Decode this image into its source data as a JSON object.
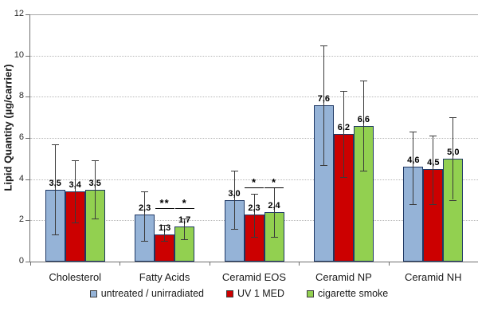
{
  "chart_data": {
    "type": "bar",
    "title": "",
    "xlabel": "",
    "ylabel": "Lipid Quantity (µg/carrier)",
    "ylim": [
      0,
      12
    ],
    "yticks": [
      0,
      2,
      4,
      6,
      8,
      10,
      12
    ],
    "grid": "horizontal dotted at 2,4,6,8,10; solid line at 12",
    "legend_position": "bottom",
    "decimal_separator": ",",
    "categories": [
      "Cholesterol",
      "Fatty Acids",
      "Ceramid EOS",
      "Ceramid NP",
      "Ceramid NH"
    ],
    "series": [
      {
        "name": "untreated / unirradiated",
        "color": "#95B3D7",
        "values": [
          3.5,
          2.3,
          3.0,
          7.6,
          4.6
        ],
        "labels": [
          "3,5",
          "2,3",
          "3,0",
          "7,6",
          "4,6"
        ],
        "error_low": [
          1.3,
          1.0,
          1.6,
          4.7,
          2.8
        ],
        "error_high": [
          5.7,
          3.4,
          4.4,
          10.5,
          6.3
        ]
      },
      {
        "name": "UV 1 MED",
        "color": "#CC0000",
        "values": [
          3.4,
          1.3,
          2.3,
          6.2,
          4.5
        ],
        "labels": [
          "3,4",
          "1,3",
          "2,3",
          "6,2",
          "4,5"
        ],
        "error_low": [
          1.9,
          1.0,
          1.2,
          4.1,
          2.8
        ],
        "error_high": [
          4.9,
          1.8,
          3.3,
          8.3,
          6.1
        ]
      },
      {
        "name": "cigarette smoke",
        "color": "#92D050",
        "values": [
          3.5,
          1.7,
          2.4,
          6.6,
          5.0
        ],
        "labels": [
          "3,5",
          "1,7",
          "2,4",
          "6,6",
          "5,0"
        ],
        "error_low": [
          2.1,
          1.1,
          1.2,
          4.4,
          3.0
        ],
        "error_high": [
          4.9,
          2.1,
          3.6,
          8.8,
          7.0
        ]
      }
    ],
    "significance": [
      {
        "category_index": 1,
        "series_index": 1,
        "text": "**",
        "line_value": 2.55
      },
      {
        "category_index": 1,
        "series_index": 2,
        "text": "*",
        "line_value": 2.55
      },
      {
        "category_index": 2,
        "series_index": 1,
        "text": "*",
        "line_value": 3.55
      },
      {
        "category_index": 2,
        "series_index": 2,
        "text": "*",
        "line_value": 3.55
      }
    ],
    "bar_border_color": "#1F3864",
    "error_bar_color": "#3a3a3a"
  }
}
